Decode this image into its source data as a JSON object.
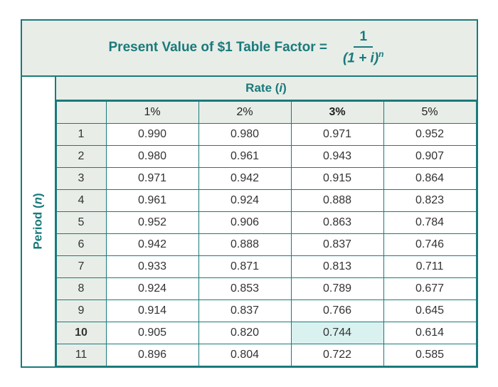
{
  "title_prefix": "Present Value of $1 Table Factor =",
  "formula_numerator": "1",
  "formula_denom_left": "(1 + ",
  "formula_denom_var": "i",
  "formula_denom_right": ")",
  "formula_denom_sup": "n",
  "rate_label_prefix": "Rate (",
  "rate_label_var": "i",
  "rate_label_suffix": ")",
  "period_label_prefix": "Period (",
  "period_label_var": "n",
  "period_label_suffix": ")",
  "columns": [
    {
      "label": "1%",
      "bold": false
    },
    {
      "label": "2%",
      "bold": false
    },
    {
      "label": "3%",
      "bold": true
    },
    {
      "label": "5%",
      "bold": false
    }
  ],
  "rows": [
    {
      "period": "1",
      "bold": false,
      "values": [
        "0.990",
        "0.980",
        "0.971",
        "0.952"
      ],
      "highlight_col": -1
    },
    {
      "period": "2",
      "bold": false,
      "values": [
        "0.980",
        "0.961",
        "0.943",
        "0.907"
      ],
      "highlight_col": -1
    },
    {
      "period": "3",
      "bold": false,
      "values": [
        "0.971",
        "0.942",
        "0.915",
        "0.864"
      ],
      "highlight_col": -1
    },
    {
      "period": "4",
      "bold": false,
      "values": [
        "0.961",
        "0.924",
        "0.888",
        "0.823"
      ],
      "highlight_col": -1
    },
    {
      "period": "5",
      "bold": false,
      "values": [
        "0.952",
        "0.906",
        "0.863",
        "0.784"
      ],
      "highlight_col": -1
    },
    {
      "period": "6",
      "bold": false,
      "values": [
        "0.942",
        "0.888",
        "0.837",
        "0.746"
      ],
      "highlight_col": -1
    },
    {
      "period": "7",
      "bold": false,
      "values": [
        "0.933",
        "0.871",
        "0.813",
        "0.711"
      ],
      "highlight_col": -1
    },
    {
      "period": "8",
      "bold": false,
      "values": [
        "0.924",
        "0.853",
        "0.789",
        "0.677"
      ],
      "highlight_col": -1
    },
    {
      "period": "9",
      "bold": false,
      "values": [
        "0.914",
        "0.837",
        "0.766",
        "0.645"
      ],
      "highlight_col": -1
    },
    {
      "period": "10",
      "bold": true,
      "values": [
        "0.905",
        "0.820",
        "0.744",
        "0.614"
      ],
      "highlight_col": 2
    },
    {
      "period": "11",
      "bold": false,
      "values": [
        "0.896",
        "0.804",
        "0.722",
        "0.585"
      ],
      "highlight_col": -1
    }
  ],
  "colors": {
    "border": "#1a7a7a",
    "header_bg": "#e8ede8",
    "highlight_bg": "#d9f2f0",
    "text_title": "#1a7a7a"
  }
}
